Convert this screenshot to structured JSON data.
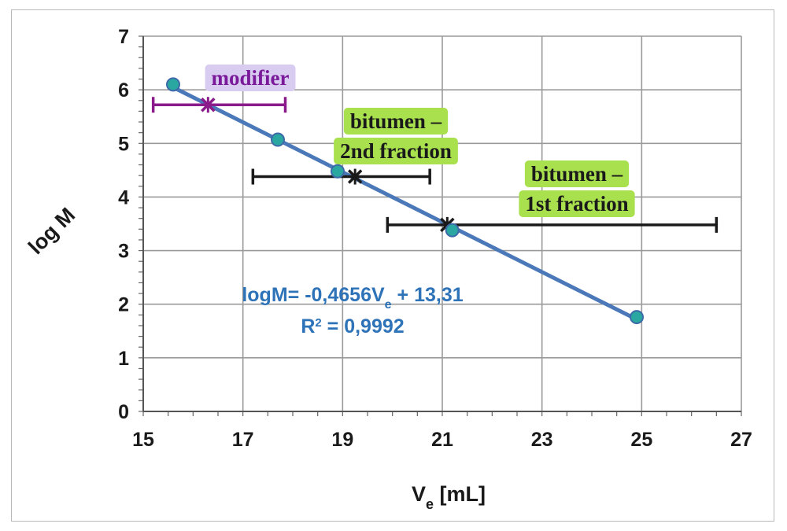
{
  "chart_data": {
    "type": "scatter",
    "xlabel_main": "V",
    "xlabel_sub": "e",
    "xlabel_unit": " [mL]",
    "ylabel": "log M",
    "xlim": [
      15,
      27
    ],
    "ylim": [
      0,
      7
    ],
    "x_ticks": [
      "15",
      "17",
      "19",
      "21",
      "23",
      "25",
      "27"
    ],
    "y_ticks": [
      "0",
      "1",
      "2",
      "3",
      "4",
      "5",
      "6",
      "7"
    ],
    "grid": true,
    "calibration_points": [
      {
        "x": 15.6,
        "y": 6.1
      },
      {
        "x": 17.7,
        "y": 5.07
      },
      {
        "x": 18.9,
        "y": 4.48
      },
      {
        "x": 21.2,
        "y": 3.38
      },
      {
        "x": 24.9,
        "y": 1.76
      }
    ],
    "fit_line": {
      "slope": -0.4656,
      "intercept": 13.31,
      "x_start": 15.6,
      "x_end": 24.9
    },
    "equation_prefix": "logM= -0,4656V",
    "equation_sub": "e",
    "equation_suffix": " + 13,31",
    "r2_prefix": "R",
    "r2_sup": "2",
    "r2_suffix": " = 0,9992",
    "ranges": [
      {
        "label_lines": [
          "modifier"
        ],
        "center": 16.3,
        "low": 15.2,
        "high": 17.85,
        "y": 5.72,
        "color": "#8b1a8b",
        "label_color": "#7a1a9a",
        "label_bg": "#d8ccf0"
      },
      {
        "label_lines": [
          "bitumen –",
          "2nd fraction"
        ],
        "center": 19.25,
        "low": 17.2,
        "high": 20.75,
        "y": 4.38,
        "color": "#1a1a1a",
        "label_color": "#1a1a1a",
        "label_bg": "#a9e04e"
      },
      {
        "label_lines": [
          "bitumen –",
          "1st fraction"
        ],
        "center": 21.1,
        "low": 19.9,
        "high": 26.5,
        "y": 3.48,
        "color": "#1a1a1a",
        "label_color": "#1a1a1a",
        "label_bg": "#a9e04e"
      }
    ],
    "colors": {
      "grid": "#9a9a9a",
      "fit_line": "#4a78b8",
      "point": "#2aa7a0",
      "point_stroke": "#3d6aa8"
    }
  }
}
